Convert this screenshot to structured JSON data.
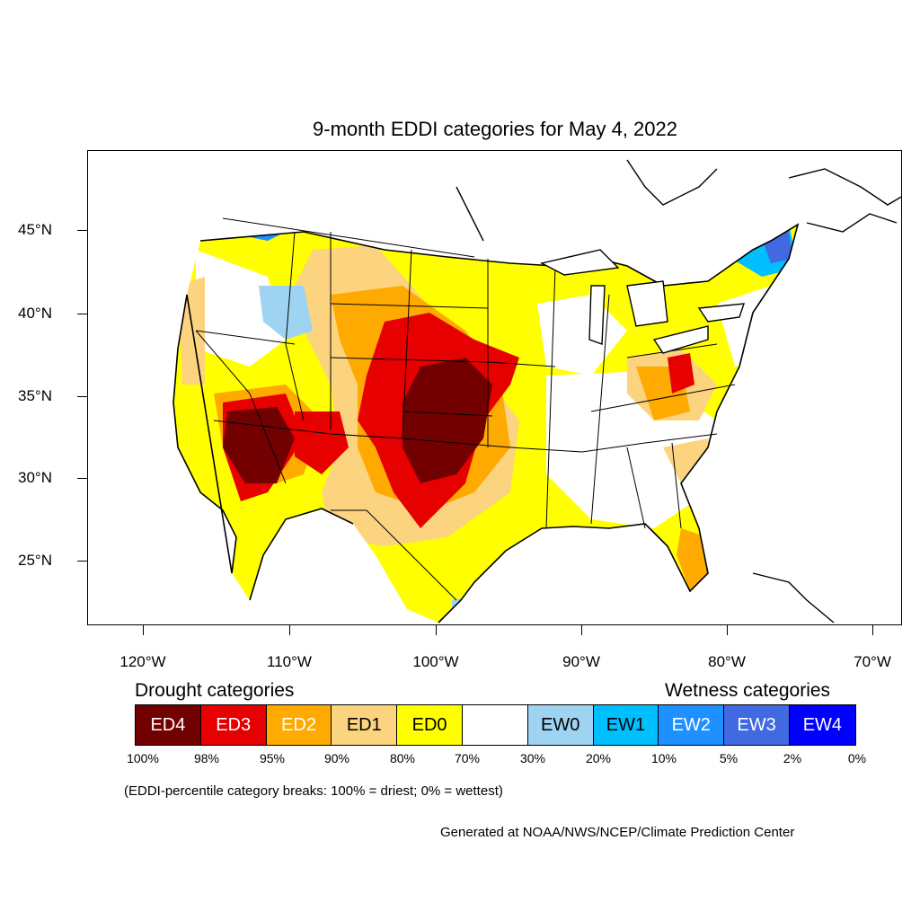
{
  "title": "9-month EDDI categories for May 4, 2022",
  "lat_labels": [
    "45°N",
    "40°N",
    "35°N",
    "30°N",
    "25°N"
  ],
  "lon_labels": [
    "120°W",
    "110°W",
    "100°W",
    "90°W",
    "80°W",
    "70°W"
  ],
  "legend": {
    "drought_heading": "Drought categories",
    "wetness_heading": "Wetness categories",
    "categories": [
      {
        "label": "ED4",
        "color": "#730000"
      },
      {
        "label": "ED3",
        "color": "#e60000"
      },
      {
        "label": "ED2",
        "color": "#ffaa00"
      },
      {
        "label": "ED1",
        "color": "#fcd37f"
      },
      {
        "label": "ED0",
        "color": "#ffff00"
      },
      {
        "label": "",
        "color": "#ffffff"
      },
      {
        "label": "EW0",
        "color": "#9fd3f2"
      },
      {
        "label": "EW1",
        "color": "#00bfff"
      },
      {
        "label": "EW2",
        "color": "#1e90ff"
      },
      {
        "label": "EW3",
        "color": "#4169e1"
      },
      {
        "label": "EW4",
        "color": "#0000ff"
      }
    ],
    "percentiles": [
      "100%",
      "98%",
      "95%",
      "90%",
      "80%",
      "70%",
      "30%",
      "20%",
      "10%",
      "5%",
      "2%",
      "0%"
    ]
  },
  "note": "(EDDI-percentile category breaks: 100% = driest; 0% = wettest)",
  "credit": "Generated at NOAA/NWS/NCEP/Climate Prediction Center"
}
